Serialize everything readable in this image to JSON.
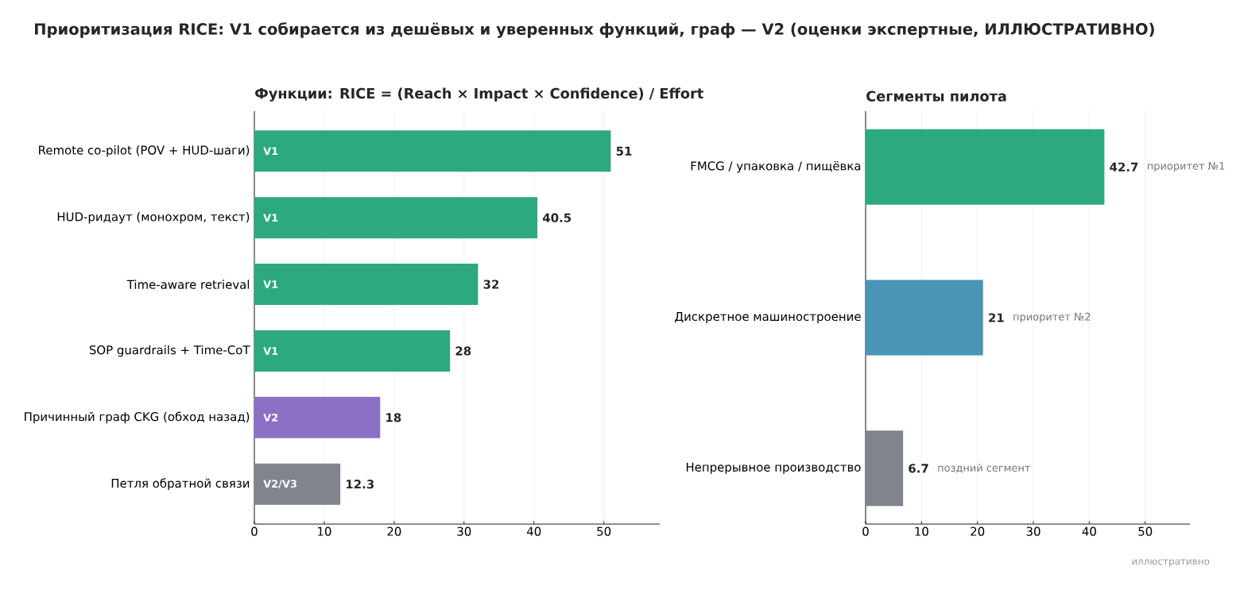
{
  "chart_data": [
    {
      "type": "bar",
      "orientation": "horizontal",
      "title": "Приоритизация RICE: V1 собирается из дешёвых и уверенных функций, граф — V2 (оценки экспертные, ИЛЛЮСТРАТИВНО)",
      "subtitle": "Функции: RICE = (Reach × Impact × Confidence) / Effort",
      "categories": [
        "Remote co-pilot (POV + HUD-шаги)",
        "HUD-ридаут (монохром, текст)",
        "Time-aware retrieval",
        "SOP guardrails + Time-CoT",
        "Причинный граф CKG (обход назад)",
        "Петля обратной связи"
      ],
      "values": [
        51,
        40.5,
        32,
        28,
        18,
        12.3
      ],
      "value_labels": [
        "51",
        "40.5",
        "32",
        "28",
        "18",
        "12.3"
      ],
      "colors": [
        "#2caa7e",
        "#2caa7e",
        "#2caa7e",
        "#2caa7e",
        "#8c70c6",
        "#7f848d"
      ],
      "xlim": [
        0,
        58
      ],
      "xticks": [
        0,
        10,
        20,
        30,
        40,
        50
      ],
      "grid": "x",
      "annotations": [
        "V1",
        "V1",
        "V1",
        "V1",
        "V2",
        "V2/V3"
      ]
    },
    {
      "type": "bar",
      "orientation": "horizontal",
      "title": "Сегменты пилота",
      "categories": [
        "FMCG / упаковка / пищёвка",
        "Дискретное машиностроение",
        "Непрерывное производство"
      ],
      "values": [
        42.7,
        21,
        6.7
      ],
      "value_labels": [
        "42.7",
        "21",
        "6.7"
      ],
      "colors": [
        "#2caa7e",
        "#4a95b6",
        "#7f848d"
      ],
      "xlim": [
        0,
        58
      ],
      "xticks": [
        0,
        10,
        20,
        30,
        40,
        50
      ],
      "grid": "x",
      "annotations": [
        "приоритет №1",
        "приоритет №2",
        "поздний сегмент",
        "иллюстративно"
      ]
    }
  ]
}
